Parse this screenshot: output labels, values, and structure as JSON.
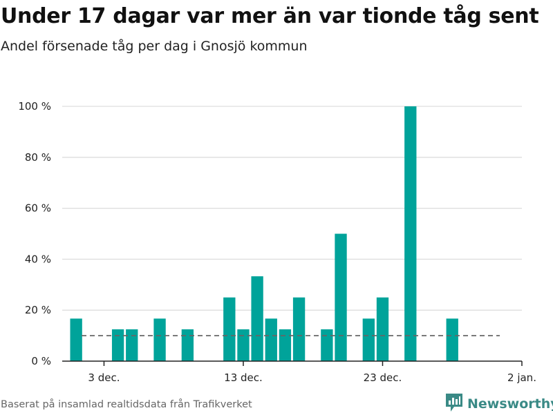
{
  "header": {
    "title": "Under 17 dagar var mer än var tionde tåg sent",
    "subtitle": "Andel försenade tåg per dag i Gnosjö kommun"
  },
  "footer": {
    "source": "Baserat på insamlad realtidsdata från Trafikverket",
    "brand": "Newsworthy",
    "brand_icon": "bar-chart-icon"
  },
  "colors": {
    "bar": "#00a39a",
    "reference_line": "#666666",
    "grid": "#dddddd"
  },
  "chart_data": {
    "type": "bar",
    "title": "Under 17 dagar var mer än var tionde tåg sent",
    "subtitle": "Andel försenade tåg per dag i Gnosjö kommun",
    "xlabel": "",
    "ylabel": "",
    "ylim": [
      0,
      100
    ],
    "y_ticks": [
      0,
      20,
      40,
      60,
      80,
      100
    ],
    "y_tick_labels": [
      "0 %",
      "20 %",
      "40 %",
      "60 %",
      "80 %",
      "100 %"
    ],
    "x_ticks": [
      "2023-12-03",
      "2023-12-13",
      "2023-12-23",
      "2024-01-02"
    ],
    "x_tick_labels": [
      "3 dec.",
      "13 dec.",
      "23 dec.",
      "2 jan."
    ],
    "xlim": [
      "2023-11-30",
      "2024-01-02"
    ],
    "grid": true,
    "reference_line": 10,
    "series": [
      {
        "x": [
          "2023-12-01",
          "2023-12-04",
          "2023-12-05",
          "2023-12-07",
          "2023-12-09",
          "2023-12-12",
          "2023-12-13",
          "2023-12-14",
          "2023-12-15",
          "2023-12-16",
          "2023-12-17",
          "2023-12-19",
          "2023-12-20",
          "2023-12-22",
          "2023-12-23",
          "2023-12-25",
          "2023-12-28"
        ],
        "values": [
          16.7,
          12.5,
          12.5,
          16.7,
          12.5,
          25,
          12.5,
          33.3,
          16.7,
          12.5,
          25,
          12.5,
          50,
          16.7,
          25,
          100,
          16.7
        ]
      }
    ]
  }
}
